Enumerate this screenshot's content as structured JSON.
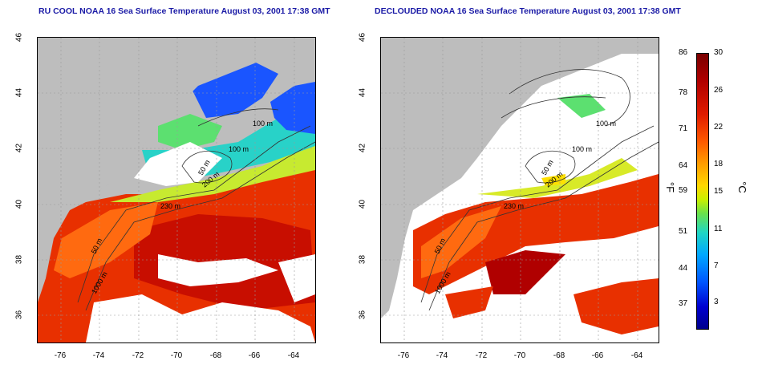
{
  "left_panel": {
    "title": "RU COOL NOAA 16 Sea Surface Temperature August 03, 2001 17:38 GMT"
  },
  "right_panel": {
    "title": "DECLOUDED NOAA 16 Sea Surface Temperature August 03, 2001 17:38 GMT"
  },
  "axes": {
    "latitude_ticks": [
      "46",
      "44",
      "42",
      "40",
      "38",
      "36"
    ],
    "longitude_ticks": [
      "-76",
      "-74",
      "-72",
      "-70",
      "-68",
      "-66",
      "-64"
    ]
  },
  "contour_labels": {
    "c100_north": "100 m",
    "c100_mid": "100 m",
    "c50_mid": "50 m",
    "c200_mid": "200 m",
    "c200_south": "230 m",
    "c50_south": "50 m",
    "c1000_south": "1000 m"
  },
  "colorbar": {
    "fahrenheit_label": "°F",
    "celsius_label": "°C",
    "fahrenheit_ticks": [
      "86",
      "78",
      "71",
      "64",
      "59",
      "51",
      "44",
      "37"
    ],
    "celsius_ticks": [
      "30",
      "26",
      "22",
      "18",
      "15",
      "11",
      "7",
      "3"
    ],
    "colors_top_to_bottom": [
      "#7a0000",
      "#e01b00",
      "#ff9d00",
      "#ffd800",
      "#6be24a",
      "#1fd6c4",
      "#0055ff",
      "#00008c"
    ]
  },
  "colors": {
    "land": "#bdbdbd",
    "cloud_mask": "#ffffff",
    "title_text": "#1a1aa6"
  }
}
